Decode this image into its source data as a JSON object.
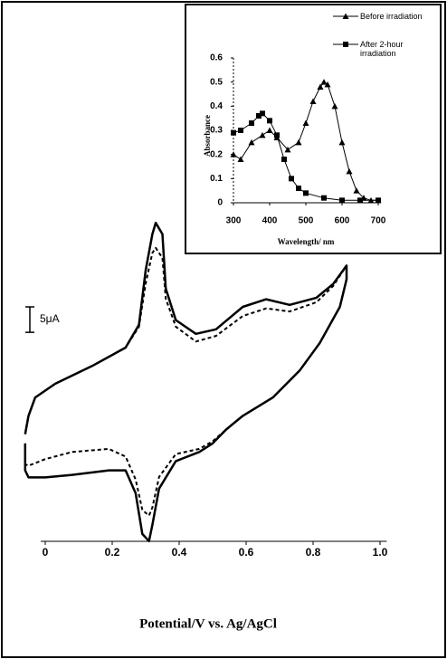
{
  "chart_data": [
    {
      "type": "line",
      "xlabel": "Potential/V vs. Ag/AgCl",
      "xlim": [
        -0.07,
        1.02
      ],
      "ylim": [
        -30,
        34
      ],
      "xticks": [
        0,
        0.2,
        0.4,
        0.6,
        0.8,
        {
          "value": 1,
          "label": "1.0"
        }
      ],
      "scale_bar": {
        "value": 5,
        "label": "5μA"
      },
      "series": [
        {
          "color": "#000000",
          "linestyle": "solid",
          "x": [
            -0.06,
            -0.05,
            -0.03,
            0.03,
            0.14,
            0.24,
            0.28,
            0.3,
            0.32,
            0.33,
            0.35,
            0.36,
            0.39,
            0.45,
            0.51,
            0.59,
            0.66,
            0.73,
            0.81,
            0.86,
            0.9,
            0.9,
            0.88,
            0.82,
            0.76,
            0.68,
            0.59,
            0.54,
            0.5,
            0.46,
            0.39,
            0.34,
            0.32,
            0.31,
            0.29,
            0.27,
            0.24,
            0.19,
            0.08,
            0,
            -0.05,
            -0.06,
            -0.06
          ],
          "values": [
            -8.6,
            -5,
            -1.4,
            1.3,
            4.8,
            8.4,
            12.9,
            23.6,
            30.7,
            32.9,
            30.7,
            20,
            13.8,
            11.1,
            12,
            16.4,
            17.9,
            16.8,
            18.2,
            20.9,
            24.5,
            21.8,
            16.4,
            9.3,
            3.9,
            -1.4,
            -5,
            -7.7,
            -10.4,
            -12.1,
            -13.9,
            -19.3,
            -26.4,
            -29.6,
            -28.2,
            -20.2,
            -15.7,
            -15.7,
            -16.6,
            -17.1,
            -17.1,
            -15.7,
            -10.4
          ]
        },
        {
          "color": "#000000",
          "linestyle": "dashed",
          "x": [
            -0.06,
            -0.05,
            -0.03,
            0.03,
            0.14,
            0.24,
            0.28,
            0.3,
            0.32,
            0.33,
            0.35,
            0.36,
            0.39,
            0.45,
            0.51,
            0.59,
            0.66,
            0.73,
            0.81,
            0.86,
            0.9,
            0.9,
            0.88,
            0.82,
            0.76,
            0.68,
            0.59,
            0.54,
            0.5,
            0.46,
            0.39,
            0.34,
            0.32,
            0.31,
            0.29,
            0.27,
            0.24,
            0.19,
            0.08,
            0,
            -0.05,
            -0.06,
            -0.06
          ],
          "values": [
            -8.6,
            -5,
            -1.4,
            1.3,
            4.8,
            8.4,
            12.5,
            21,
            27,
            28,
            26,
            18,
            12.5,
            9.6,
            10.7,
            14.6,
            16.1,
            15.5,
            17.3,
            20.5,
            24.5,
            21.8,
            16.4,
            9.3,
            3.9,
            -1.4,
            -5,
            -7.7,
            -10,
            -11.5,
            -12.5,
            -17,
            -23,
            -24.6,
            -23.5,
            -17.5,
            -13,
            -11.5,
            -12.1,
            -13.5,
            -14.8,
            -14.5,
            -10.4
          ]
        }
      ]
    },
    {
      "type": "line",
      "xlabel": "Wavelength/ nm",
      "ylabel": "Absorbance",
      "xlim": [
        300,
        700
      ],
      "ylim": [
        0,
        0.6
      ],
      "xticks": [
        300,
        400,
        500,
        600,
        700
      ],
      "yticks": [
        0,
        0.1,
        0.2,
        0.3,
        0.4,
        0.5,
        0.6
      ],
      "legend": "upper right",
      "series": [
        {
          "name": "Before irradiation",
          "color": "#000000",
          "marker": "triangle",
          "x": [
            300,
            320,
            350,
            380,
            400,
            420,
            450,
            480,
            500,
            520,
            540,
            550,
            560,
            580,
            600,
            620,
            640,
            660,
            680,
            700
          ],
          "values": [
            0.2,
            0.18,
            0.25,
            0.28,
            0.3,
            0.27,
            0.22,
            0.25,
            0.33,
            0.42,
            0.48,
            0.5,
            0.49,
            0.4,
            0.25,
            0.13,
            0.05,
            0.02,
            0.01,
            0.01
          ]
        },
        {
          "name": "After 2-hour irradiation",
          "color": "#000000",
          "marker": "square",
          "x": [
            300,
            320,
            350,
            370,
            380,
            400,
            420,
            440,
            460,
            480,
            500,
            550,
            600,
            650,
            700
          ],
          "values": [
            0.29,
            0.3,
            0.33,
            0.36,
            0.37,
            0.34,
            0.28,
            0.18,
            0.1,
            0.06,
            0.04,
            0.02,
            0.01,
            0.01,
            0.01
          ]
        }
      ]
    }
  ]
}
